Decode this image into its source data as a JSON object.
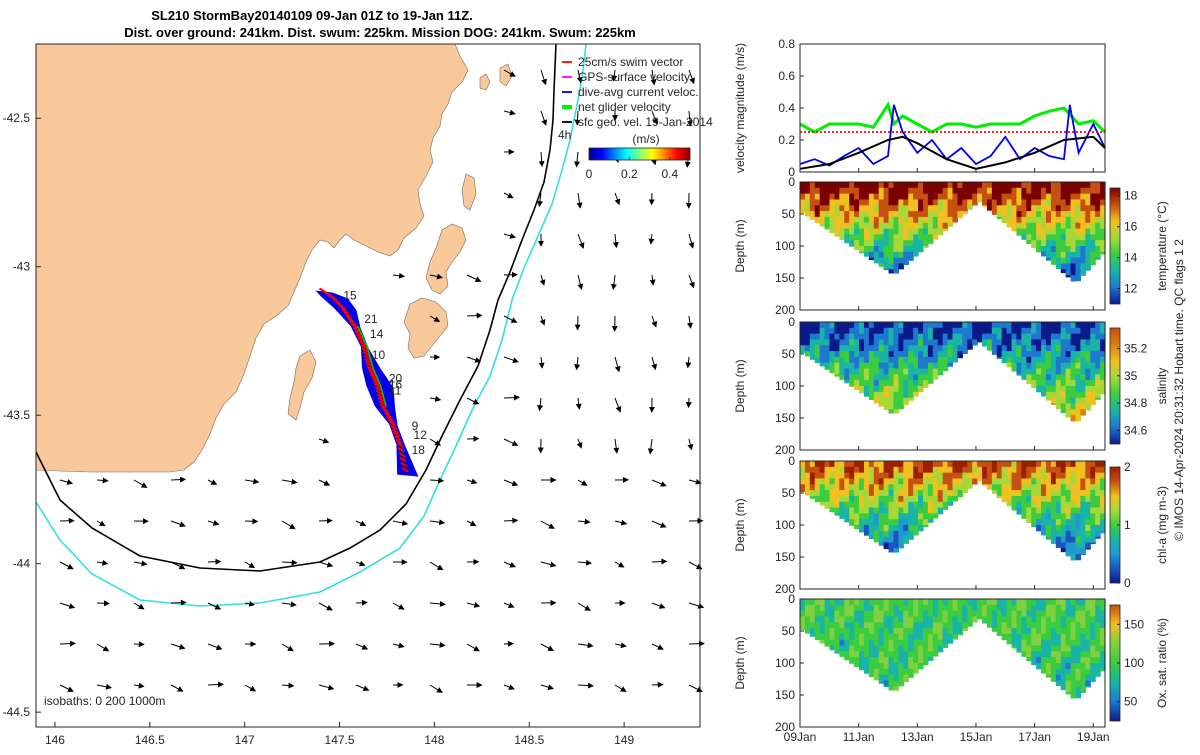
{
  "title": {
    "line1": "SL210 StormBay20140109 09-Jan 01Z to 19-Jan 11Z.",
    "line2": "Dist. over ground: 241km. Dist. swum: 225km. Mission DOG: 241km. Swum: 225km"
  },
  "credit": "© IMOS 14-Apr-2024 20:31:32 Hobart time. QC flags 1  2",
  "colors": {
    "land": "#f9c89b",
    "track": "#ff0000",
    "isobath_200": "#000000",
    "isobath_1000": "#33e0e0",
    "net_velocity": "#00ee00",
    "dive_avg": "#0000ee",
    "swim_vector": "#ff0000",
    "gps_velocity": "#ff00ff",
    "geo_velocity": "#000000"
  },
  "chart_data": [
    {
      "type": "map",
      "lon_range": [
        145.9,
        149.4
      ],
      "lat_range": [
        -44.55,
        -42.25
      ],
      "x_ticks": [
        "146",
        "146.5",
        "147",
        "147.5",
        "148",
        "148.5",
        "149"
      ],
      "x_tick_values": [
        146,
        146.5,
        147,
        147.5,
        148,
        148.5,
        149
      ],
      "y_ticks": [
        "-42.5",
        "-43",
        "-43.5",
        "-44",
        "-44.5"
      ],
      "y_tick_values": [
        -42.5,
        -43,
        -43.5,
        -44,
        -44.5
      ],
      "legend": [
        {
          "label": "25cm/s swim vector",
          "color": "#ff0000"
        },
        {
          "label": "GPS-surface velocity",
          "color": "#ff00ff"
        },
        {
          "label": "dive-avg current veloc.",
          "color": "#0000ee"
        },
        {
          "label": "net glider velocity",
          "color": "#00ee00"
        },
        {
          "label": "sfc geo. vel. 19-Jan-2014",
          "color": "#000000"
        }
      ],
      "legend_placement": "top-right",
      "colorbar": {
        "title": "(m/s)",
        "ticks": [
          "0",
          "0.2",
          "0.4"
        ],
        "tick_values": [
          0,
          0.2,
          0.4
        ],
        "range": [
          0,
          0.5
        ]
      },
      "isobaths_label": "isobaths: 0   200  1000m",
      "scale_label": "4h",
      "day_labels": [
        {
          "label": "15",
          "lon": 147.52,
          "lat": -43.11
        },
        {
          "label": "21",
          "lon": 147.63,
          "lat": -43.19
        },
        {
          "label": "14",
          "lon": 147.66,
          "lat": -43.24
        },
        {
          "label": "10",
          "lon": 147.67,
          "lat": -43.31
        },
        {
          "label": "20",
          "lon": 147.76,
          "lat": -43.39
        },
        {
          "label": "16",
          "lon": 147.76,
          "lat": -43.41
        },
        {
          "label": "11",
          "lon": 147.76,
          "lat": -43.43
        },
        {
          "label": "9",
          "lon": 147.88,
          "lat": -43.55
        },
        {
          "label": "12",
          "lon": 147.89,
          "lat": -43.58
        },
        {
          "label": "18",
          "lon": 147.88,
          "lat": -43.63
        }
      ],
      "track": [
        [
          147.41,
          -43.08
        ],
        [
          147.46,
          -43.1
        ],
        [
          147.52,
          -43.14
        ],
        [
          147.58,
          -43.2
        ],
        [
          147.63,
          -43.27
        ],
        [
          147.66,
          -43.34
        ],
        [
          147.7,
          -43.4
        ],
        [
          147.73,
          -43.47
        ],
        [
          147.78,
          -43.53
        ],
        [
          147.82,
          -43.6
        ],
        [
          147.85,
          -43.7
        ]
      ]
    },
    {
      "type": "line",
      "ylabel": "velocity magnitude (m/s)",
      "ylim": [
        0,
        0.8
      ],
      "y_ticks": [
        "0",
        "0.2",
        "0.4",
        "0.6",
        "0.8"
      ],
      "y_tick_values": [
        0,
        0.2,
        0.4,
        0.6,
        0.8
      ],
      "x_days": [
        9,
        19.4
      ],
      "series": [
        {
          "color": "#00ee00",
          "x": [
            9,
            9.5,
            10,
            10.5,
            11,
            11.5,
            12,
            12.2,
            12.5,
            13,
            13.5,
            14,
            14.5,
            15,
            15.5,
            16,
            16.5,
            17,
            17.5,
            18,
            18.5,
            19,
            19.4
          ],
          "values": [
            0.3,
            0.25,
            0.3,
            0.3,
            0.3,
            0.28,
            0.42,
            0.3,
            0.35,
            0.3,
            0.25,
            0.3,
            0.3,
            0.28,
            0.3,
            0.3,
            0.3,
            0.35,
            0.38,
            0.4,
            0.3,
            0.32,
            0.25
          ]
        },
        {
          "color": "#0000ee",
          "x": [
            9,
            9.5,
            10,
            10.5,
            11,
            11.5,
            12,
            12.2,
            12.5,
            13,
            13.5,
            14,
            14.5,
            15,
            15.5,
            16,
            16.5,
            17,
            17.5,
            18,
            18.2,
            18.5,
            19,
            19.4
          ],
          "values": [
            0.05,
            0.08,
            0.04,
            0.1,
            0.15,
            0.05,
            0.1,
            0.42,
            0.25,
            0.12,
            0.2,
            0.08,
            0.15,
            0.05,
            0.1,
            0.22,
            0.08,
            0.15,
            0.1,
            0.08,
            0.42,
            0.12,
            0.3,
            0.15
          ]
        },
        {
          "color": "#000000",
          "x": [
            9,
            10,
            11,
            12,
            12.5,
            13,
            14,
            15,
            16,
            17,
            18,
            19,
            19.4
          ],
          "values": [
            0.02,
            0.05,
            0.12,
            0.2,
            0.22,
            0.18,
            0.08,
            0.02,
            0.06,
            0.12,
            0.2,
            0.22,
            0.15
          ]
        },
        {
          "color": "#ff0000",
          "x": [
            9,
            19.4
          ],
          "values": [
            0.25,
            0.25
          ]
        }
      ]
    },
    {
      "type": "heatmap",
      "ylabel": "Depth (m)",
      "clabel": "temperature (°C)",
      "ylim": [
        0,
        200
      ],
      "y_ticks": [
        "0",
        "50",
        "100",
        "150",
        "200"
      ],
      "y_tick_values": [
        0,
        50,
        100,
        150,
        200
      ],
      "c_ticks": [
        "12",
        "14",
        "16",
        "18"
      ],
      "c_tick_values": [
        12,
        14,
        16,
        18
      ],
      "crange": [
        11,
        18.5
      ]
    },
    {
      "type": "heatmap",
      "ylabel": "Depth (m)",
      "clabel": "salinity",
      "ylim": [
        0,
        200
      ],
      "y_ticks": [
        "0",
        "50",
        "100",
        "150",
        "200"
      ],
      "y_tick_values": [
        0,
        50,
        100,
        150,
        200
      ],
      "c_ticks": [
        "34.6",
        "34.8",
        "35",
        "35.2"
      ],
      "c_tick_values": [
        34.6,
        34.8,
        35.0,
        35.2
      ],
      "crange": [
        34.5,
        35.35
      ]
    },
    {
      "type": "heatmap",
      "ylabel": "Depth (m)",
      "clabel": "chl-a (mg m-3)",
      "ylim": [
        0,
        200
      ],
      "y_ticks": [
        "0",
        "50",
        "100",
        "150",
        "200"
      ],
      "y_tick_values": [
        0,
        50,
        100,
        150,
        200
      ],
      "c_ticks": [
        "0",
        "1",
        "2"
      ],
      "c_tick_values": [
        0,
        1,
        2
      ],
      "crange": [
        0,
        2
      ]
    },
    {
      "type": "heatmap",
      "ylabel": "Depth (m)",
      "clabel": "Ox. sat. ratio (%)",
      "ylim": [
        0,
        200
      ],
      "y_ticks": [
        "0",
        "50",
        "100",
        "150",
        "200"
      ],
      "y_tick_values": [
        0,
        50,
        100,
        150,
        200
      ],
      "c_ticks": [
        "50",
        "100",
        "150"
      ],
      "c_tick_values": [
        50,
        100,
        150
      ],
      "crange": [
        25,
        175
      ],
      "x_ticks": [
        "09Jan",
        "11Jan",
        "13Jan",
        "15Jan",
        "17Jan",
        "19Jan"
      ],
      "x_tick_values": [
        9,
        11,
        13,
        15,
        17,
        19
      ]
    }
  ]
}
